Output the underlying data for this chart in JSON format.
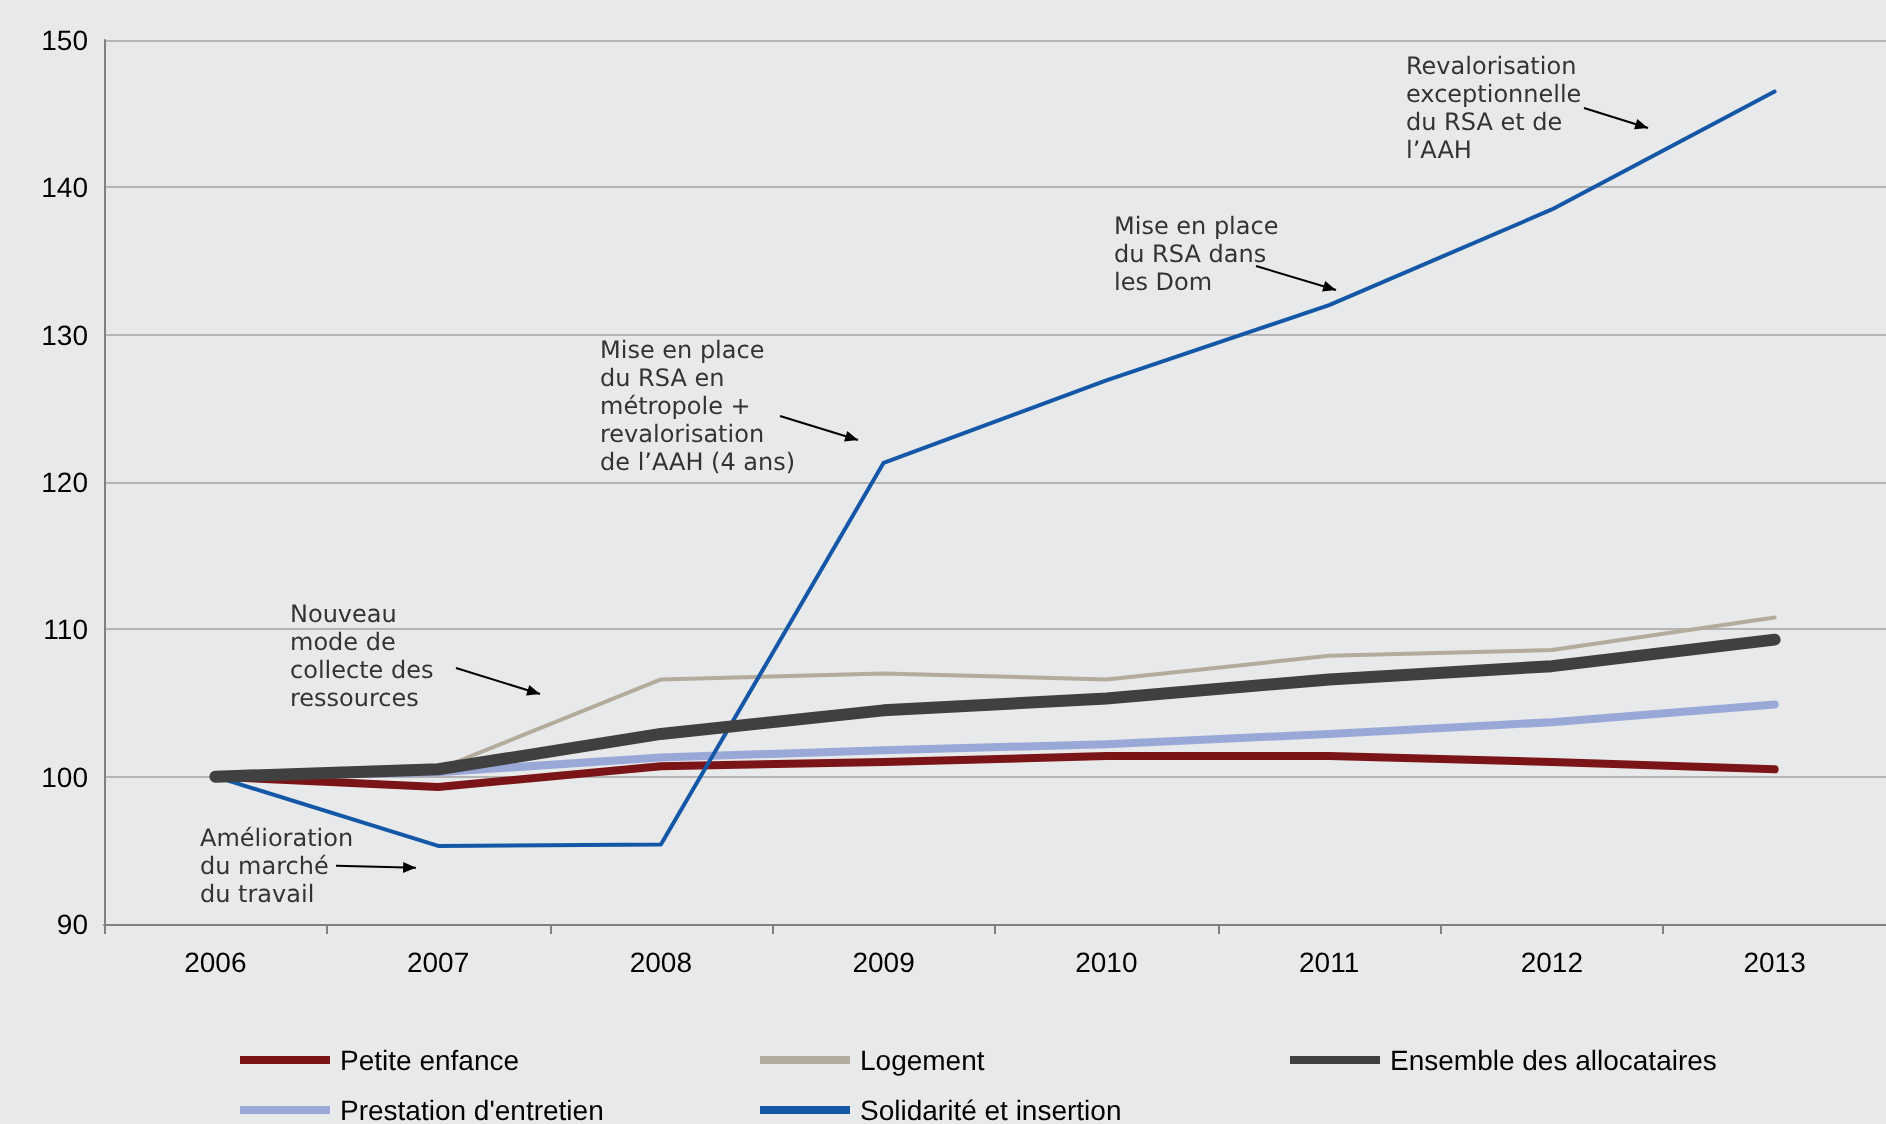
{
  "chart_data": {
    "type": "line",
    "categories": [
      "2006",
      "2007",
      "2008",
      "2009",
      "2010",
      "2011",
      "2012",
      "2013"
    ],
    "series": [
      {
        "name": "Petite enfance",
        "color": "#7b1416",
        "values": [
          100,
          99.3,
          100.7,
          101.0,
          101.4,
          101.4,
          101.0,
          100.5
        ]
      },
      {
        "name": "Prestation d'entretien",
        "color": "#9aa8d8",
        "values": [
          100,
          100.3,
          101.3,
          101.8,
          102.2,
          102.9,
          103.7,
          104.9
        ]
      },
      {
        "name": "Logement",
        "color": "#b3ab9c",
        "values": [
          100,
          100.5,
          106.6,
          107.0,
          106.6,
          108.2,
          108.6,
          110.8
        ]
      },
      {
        "name": "Solidarité et insertion",
        "color": "#1357a6",
        "values": [
          100,
          95.3,
          95.4,
          121.3,
          126.9,
          132.0,
          138.5,
          146.5
        ]
      },
      {
        "name": "Ensemble des allocataires",
        "color": "#404040",
        "values": [
          100,
          100.5,
          102.9,
          104.5,
          105.3,
          106.6,
          107.5,
          109.3
        ]
      }
    ],
    "ylim": [
      90,
      150
    ],
    "yticks": [
      90,
      100,
      110,
      120,
      130,
      140,
      150
    ],
    "grid": "y",
    "legend": "bottom",
    "marker": "none",
    "line_style": "solid",
    "annotations": [
      "Nouveau\nmode de\ncollecte des\nressources",
      "Amélioration\ndu marché\ndu travail",
      "Mise en place\ndu RSA en\nmétropole +\nrevalorisation\nde l’AAH (4 ans)",
      "Mise en place\ndu RSA dans\nles Dom",
      "Revalorisation\nexceptionnelle\ndu RSA et de\nl’AAH"
    ]
  }
}
